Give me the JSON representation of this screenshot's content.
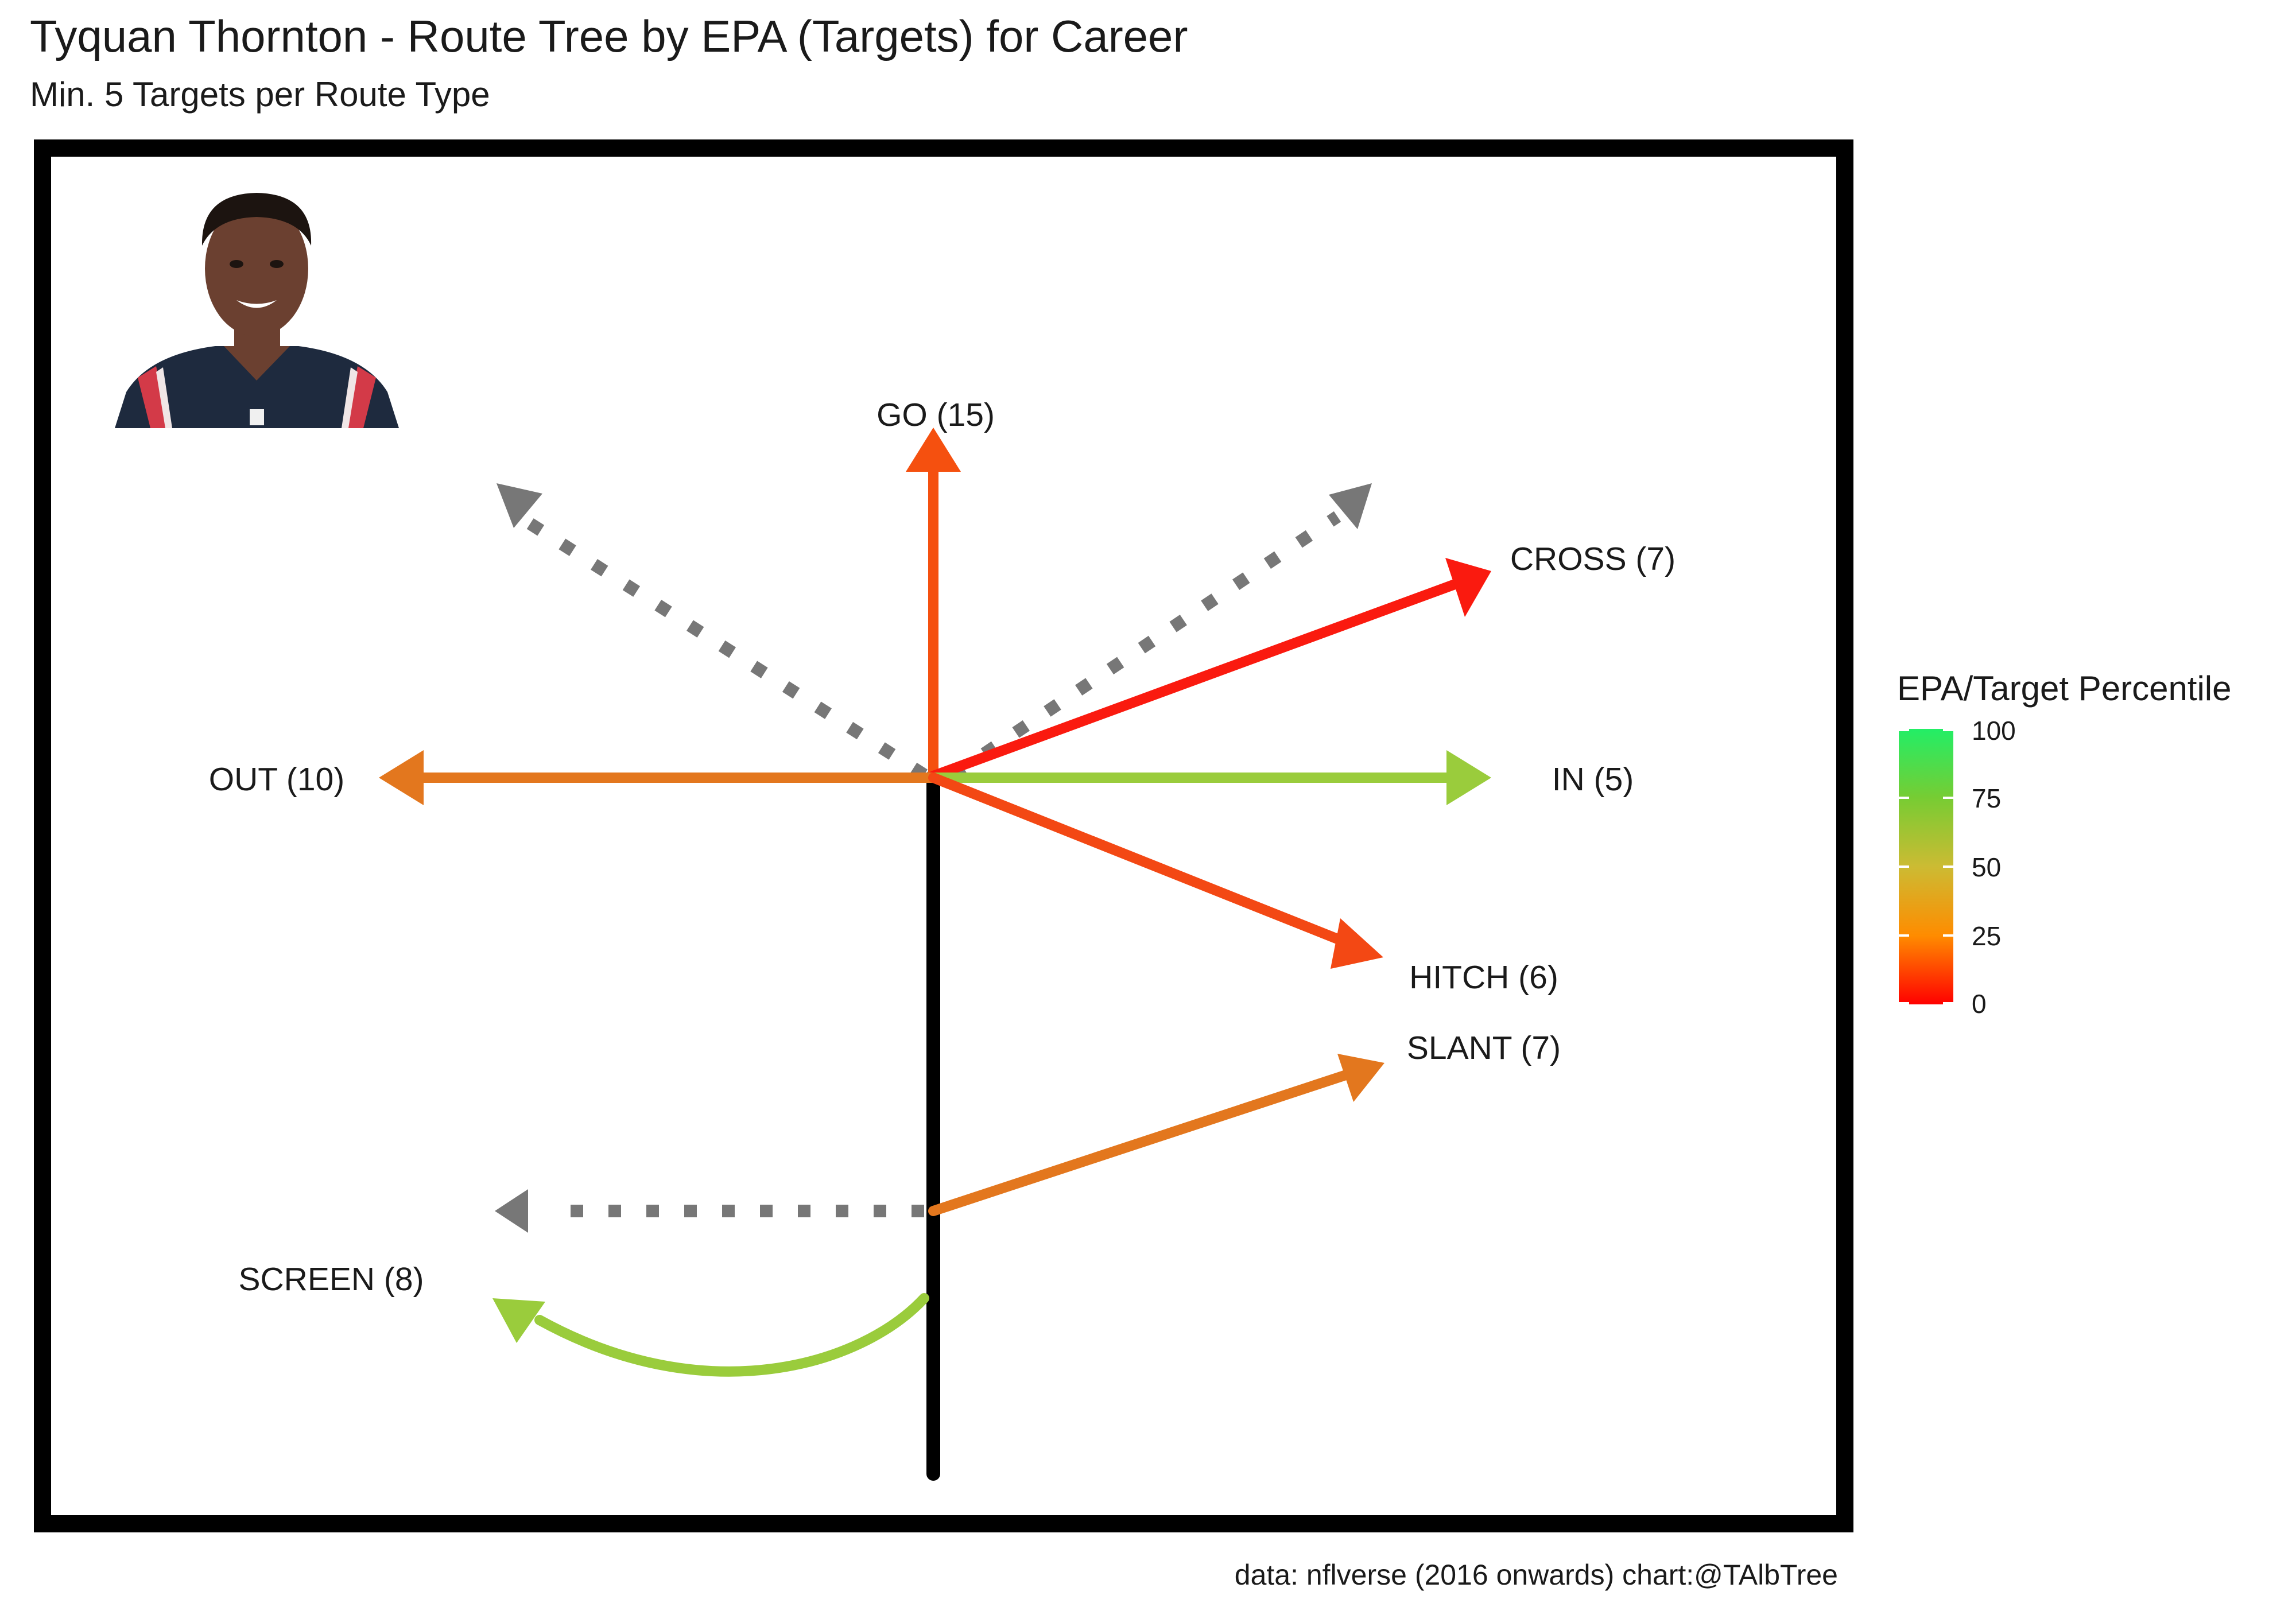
{
  "header": {
    "title": "Tyquan Thornton - Route Tree by EPA (Targets) for Career",
    "subtitle": "Min. 5 Targets per Route Type"
  },
  "caption": "data: nflverse (2016 onwards)  chart:@TAlbTree",
  "legend": {
    "title": "EPA/Target Percentile",
    "labels": [
      "100",
      "75",
      "50",
      "25",
      "0"
    ]
  },
  "chart_data": {
    "type": "route-tree",
    "title": "Tyquan Thornton - Route Tree by EPA (Targets) for Career",
    "subtitle": "Min. 5 Targets per Route Type",
    "color_scale": {
      "name": "EPA/Target Percentile",
      "min": 0,
      "max": 100,
      "low_color": "#ff0000",
      "high_color": "#22ee66"
    },
    "routes": [
      {
        "route": "GO",
        "targets": 15,
        "label": "GO (15)",
        "color": "#f5500f"
      },
      {
        "route": "CROSS",
        "targets": 7,
        "label": "CROSS (7)",
        "color": "#fa1a0f"
      },
      {
        "route": "IN",
        "targets": 5,
        "label": "IN (5)",
        "color": "#9acc3c"
      },
      {
        "route": "OUT",
        "targets": 10,
        "label": "OUT (10)",
        "color": "#e3771e"
      },
      {
        "route": "HITCH",
        "targets": 6,
        "label": "HITCH (6)",
        "color": "#f34814"
      },
      {
        "route": "SLANT",
        "targets": 7,
        "label": "SLANT (7)",
        "color": "#e3771e"
      },
      {
        "route": "SCREEN",
        "targets": 8,
        "label": "SCREEN (8)",
        "color": "#9acc3c"
      }
    ],
    "unqualified_route_color": "#777777"
  },
  "photo": {
    "icon": "player-headshot",
    "jersey_color": "#1e2a3e",
    "stripe_color": "#d33a48",
    "skin_color": "#6b4030"
  }
}
